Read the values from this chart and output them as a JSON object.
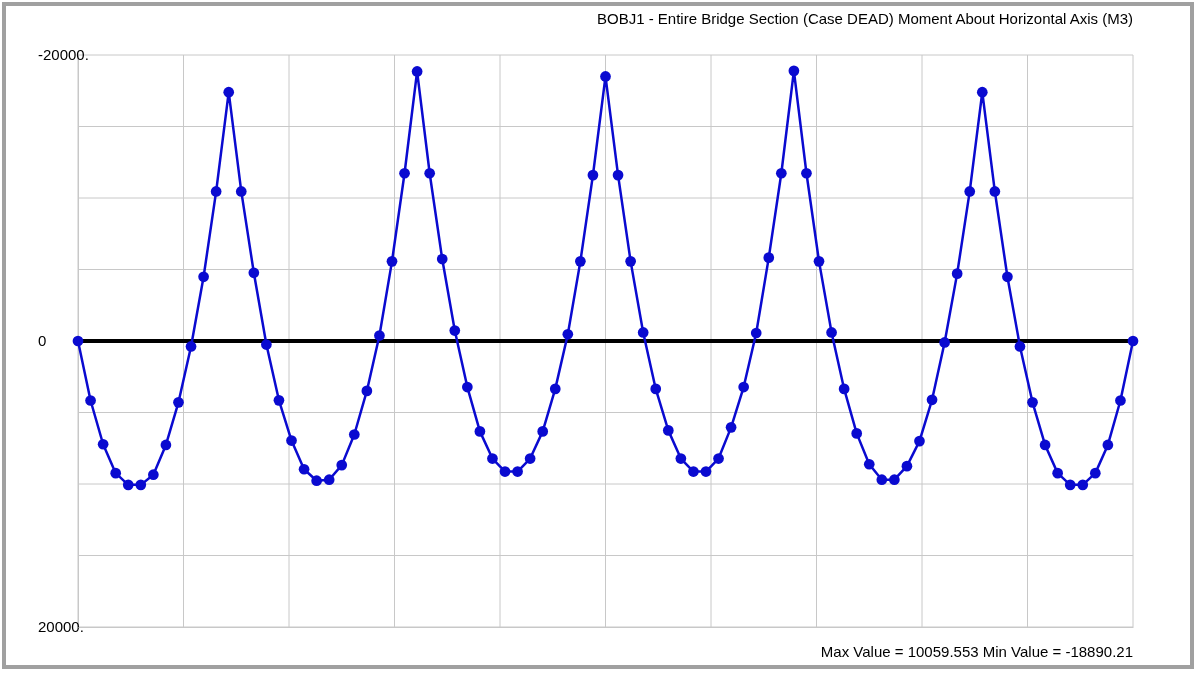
{
  "chart_data": {
    "type": "line",
    "title": "BOBJ1 - Entire Bridge Section  (Case DEAD)  Moment About Horizontal Axis  (M3)",
    "annotations": [
      "Max Value = 10059.553   Min Value = -18890.21"
    ],
    "categories": [
      null,
      null,
      null,
      null,
      null,
      null,
      null,
      null,
      null,
      null,
      null,
      null,
      null,
      null,
      null,
      null,
      null,
      null,
      null,
      null,
      null,
      null,
      null,
      null,
      null,
      null,
      null,
      null,
      null,
      null,
      null,
      null,
      null,
      null,
      null,
      null,
      null,
      null,
      null,
      null,
      null,
      null,
      null,
      null,
      null,
      null,
      null,
      null,
      null,
      null,
      null,
      null,
      null,
      null,
      null,
      null,
      null,
      null,
      null,
      null,
      null,
      null,
      null,
      null,
      null,
      null,
      null,
      null,
      null,
      null,
      null,
      null,
      null,
      null,
      null,
      null,
      null,
      null,
      null,
      null,
      null,
      null,
      null,
      null,
      null
    ],
    "series": [
      {
        "color": "#0a0ad0",
        "values": [
          0,
          4160,
          7220,
          9240,
          10060,
          10060,
          9350,
          7270,
          4290,
          380,
          -4490,
          -10460,
          -17400,
          -10460,
          -4770,
          250,
          4150,
          6960,
          8970,
          9770,
          9700,
          8680,
          6540,
          3490,
          -380,
          -5570,
          -11730,
          -18850,
          -11730,
          -5730,
          -730,
          3220,
          6320,
          8220,
          9130,
          9130,
          8220,
          6320,
          3350,
          -470,
          -5570,
          -11600,
          -18500,
          -11600,
          -5570,
          -600,
          3350,
          6250,
          8220,
          9130,
          9130,
          8220,
          6040,
          3220,
          -560,
          -5830,
          -11730,
          -18890,
          -11730,
          -5570,
          -600,
          3350,
          6460,
          8620,
          9700,
          9700,
          8750,
          7000,
          4110,
          100,
          -4710,
          -10460,
          -17400,
          -10460,
          -4490,
          380,
          4290,
          7270,
          9240,
          10060,
          10060,
          9240,
          7270,
          4160,
          0
        ]
      }
    ],
    "ylim": [
      20000,
      -20000
    ],
    "yticks": [
      {
        "value": -20000,
        "label": "-20000."
      },
      {
        "value": -15000,
        "label": null
      },
      {
        "value": -10000,
        "label": null
      },
      {
        "value": -5000,
        "label": null
      },
      {
        "value": 0,
        "label": "0"
      },
      {
        "value": 5000,
        "label": null
      },
      {
        "value": 10000,
        "label": null
      },
      {
        "value": 15000,
        "label": null
      },
      {
        "value": 20000,
        "label": "20000."
      }
    ],
    "tick_labels": "y",
    "grid": true,
    "marker": "circle",
    "line_style": "solid",
    "ref_lines": [
      {
        "axis": "y",
        "value": 0,
        "color": "#000000"
      }
    ]
  }
}
